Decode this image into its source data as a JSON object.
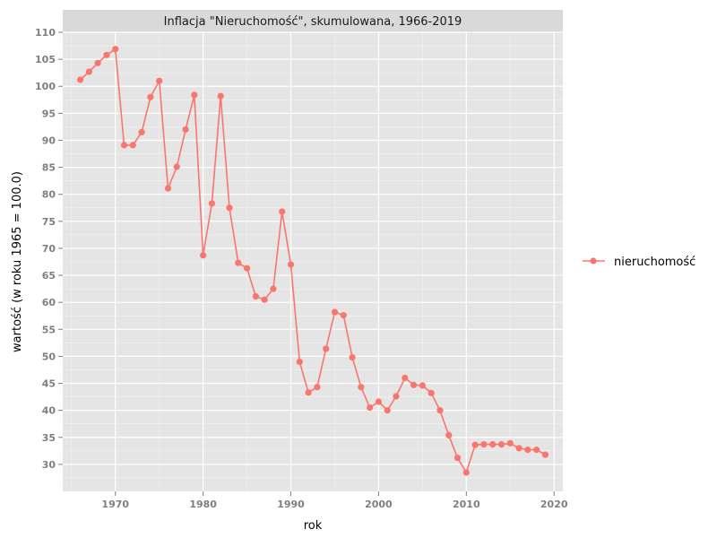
{
  "chart_data": {
    "type": "line",
    "title": "Inflacja \"Nieruchomość\", skumulowana, 1966-2019",
    "xlabel": "rok",
    "ylabel": "wartość (w roku 1965 = 100.0)",
    "xlim": [
      1964,
      2021
    ],
    "ylim": [
      25,
      110
    ],
    "xticks": [
      1970,
      1980,
      1990,
      2000,
      2010,
      2020
    ],
    "yticks": [
      30,
      35,
      40,
      45,
      50,
      55,
      60,
      65,
      70,
      75,
      80,
      85,
      90,
      95,
      100,
      105,
      110
    ],
    "grid": true,
    "legend_position": "right",
    "series": [
      {
        "name": "nieruchomość",
        "color": "#f8766d",
        "x": [
          1966,
          1967,
          1968,
          1969,
          1970,
          1971,
          1972,
          1973,
          1974,
          1975,
          1976,
          1977,
          1978,
          1979,
          1980,
          1981,
          1982,
          1983,
          1984,
          1985,
          1986,
          1987,
          1988,
          1989,
          1990,
          1991,
          1992,
          1993,
          1994,
          1995,
          1996,
          1997,
          1998,
          1999,
          2000,
          2001,
          2002,
          2003,
          2004,
          2005,
          2006,
          2007,
          2008,
          2009,
          2010,
          2011,
          2012,
          2013,
          2014,
          2015,
          2016,
          2017,
          2018,
          2019
        ],
        "y": [
          101.2,
          102.7,
          104.3,
          105.8,
          106.9,
          89.1,
          89.1,
          91.5,
          98.0,
          101.0,
          81.1,
          85.1,
          92.0,
          98.4,
          68.7,
          78.3,
          98.2,
          77.5,
          67.3,
          66.3,
          61.1,
          60.5,
          62.5,
          76.8,
          67.0,
          49.0,
          43.3,
          44.3,
          51.4,
          58.2,
          57.6,
          49.8,
          44.3,
          40.5,
          41.6,
          40.0,
          42.6,
          46.0,
          44.7,
          44.6,
          43.2,
          40.0,
          35.4,
          31.2,
          28.5,
          33.6,
          33.7,
          33.7,
          33.7,
          33.9,
          33.0,
          32.7,
          32.7,
          31.8
        ]
      }
    ]
  }
}
